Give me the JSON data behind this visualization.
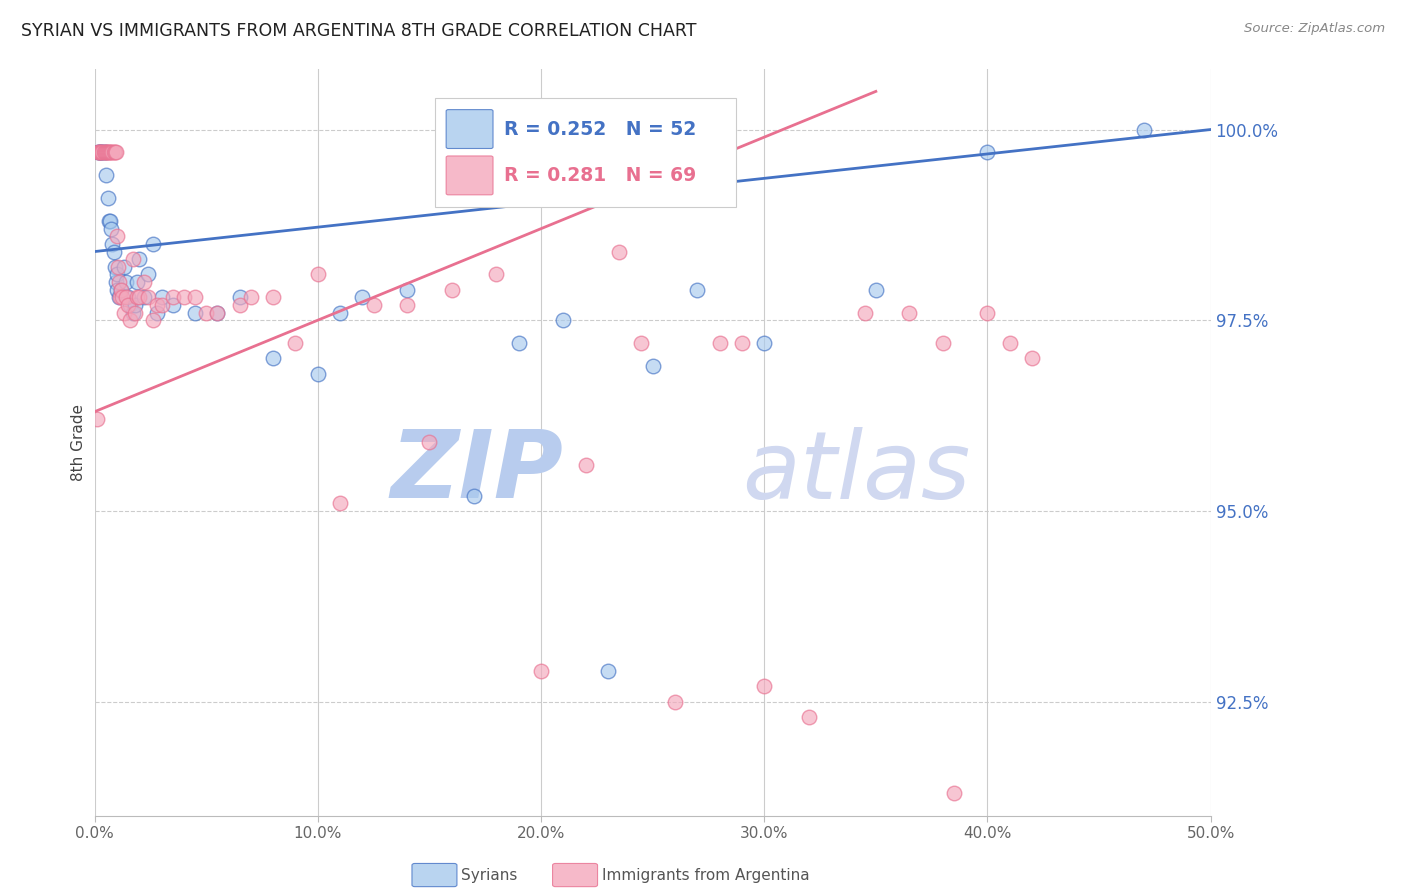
{
  "title": "SYRIAN VS IMMIGRANTS FROM ARGENTINA 8TH GRADE CORRELATION CHART",
  "source": "Source: ZipAtlas.com",
  "ylabel": "8th Grade",
  "y_ticks_right": [
    100.0,
    97.5,
    95.0,
    92.5
  ],
  "y_ticks_right_labels": [
    "100.0%",
    "97.5%",
    "95.0%",
    "92.5%"
  ],
  "y_min": 91.0,
  "y_max": 100.8,
  "x_min": 0.0,
  "x_max": 50.0,
  "legend_R_blue": "R = 0.252",
  "legend_N_blue": "N = 52",
  "legend_R_pink": "R = 0.281",
  "legend_N_pink": "N = 69",
  "legend_label_blue": "Syrians",
  "legend_label_pink": "Immigrants from Argentina",
  "color_blue": "#A8CAED",
  "color_pink": "#F4A8BC",
  "trendline_blue": "#4472C4",
  "trendline_pink": "#E87090",
  "background_color": "#FFFFFF",
  "title_color": "#222222",
  "axis_label_color": "#444444",
  "right_tick_color": "#4472C4",
  "grid_color": "#CCCCCC",
  "watermark_zip": "ZIP",
  "watermark_atlas": "atlas",
  "watermark_color_zip": "#B8CCEE",
  "watermark_color_atlas": "#D0D8F0",
  "blue_points_x": [
    0.15,
    0.2,
    0.25,
    0.3,
    0.35,
    0.4,
    0.5,
    0.5,
    0.6,
    0.65,
    0.7,
    0.75,
    0.8,
    0.85,
    0.9,
    0.95,
    1.0,
    1.0,
    1.1,
    1.2,
    1.3,
    1.4,
    1.5,
    1.6,
    1.7,
    1.8,
    1.9,
    2.0,
    2.2,
    2.4,
    2.6,
    2.8,
    3.0,
    3.5,
    4.5,
    5.5,
    6.5,
    8.0,
    10.0,
    11.0,
    12.0,
    14.0,
    17.0,
    19.0,
    21.0,
    23.0,
    25.0,
    27.0,
    30.0,
    35.0,
    40.0,
    47.0
  ],
  "blue_points_y": [
    99.7,
    99.7,
    99.7,
    99.7,
    99.7,
    99.7,
    99.7,
    99.4,
    99.1,
    98.8,
    98.8,
    98.7,
    98.5,
    98.4,
    98.2,
    98.0,
    98.1,
    97.9,
    97.8,
    97.9,
    98.2,
    98.0,
    97.8,
    97.7,
    97.6,
    97.7,
    98.0,
    98.3,
    97.8,
    98.1,
    98.5,
    97.6,
    97.8,
    97.7,
    97.6,
    97.6,
    97.8,
    97.0,
    96.8,
    97.6,
    97.8,
    97.9,
    95.2,
    97.2,
    97.5,
    92.9,
    96.9,
    97.9,
    97.2,
    97.9,
    99.7,
    100.0
  ],
  "pink_points_x": [
    0.1,
    0.15,
    0.2,
    0.25,
    0.3,
    0.35,
    0.4,
    0.45,
    0.5,
    0.55,
    0.6,
    0.65,
    0.7,
    0.75,
    0.8,
    0.85,
    0.9,
    0.95,
    1.0,
    1.05,
    1.1,
    1.15,
    1.2,
    1.25,
    1.3,
    1.4,
    1.5,
    1.6,
    1.7,
    1.8,
    1.9,
    2.0,
    2.2,
    2.4,
    2.6,
    2.8,
    3.0,
    3.5,
    4.0,
    4.5,
    5.0,
    5.5,
    6.5,
    7.0,
    8.0,
    9.0,
    10.0,
    11.0,
    12.5,
    14.0,
    15.0,
    16.0,
    18.0,
    20.0,
    22.0,
    23.5,
    24.5,
    26.0,
    28.0,
    29.0,
    30.0,
    32.0,
    34.5,
    36.5,
    38.0,
    38.5,
    40.0,
    41.0,
    42.0
  ],
  "pink_points_y": [
    96.2,
    99.7,
    99.7,
    99.7,
    99.7,
    99.7,
    99.7,
    99.7,
    99.7,
    99.7,
    99.7,
    99.7,
    99.7,
    99.7,
    99.7,
    99.7,
    99.7,
    99.7,
    98.6,
    98.2,
    98.0,
    97.8,
    97.9,
    97.8,
    97.6,
    97.8,
    97.7,
    97.5,
    98.3,
    97.6,
    97.8,
    97.8,
    98.0,
    97.8,
    97.5,
    97.7,
    97.7,
    97.8,
    97.8,
    97.8,
    97.6,
    97.6,
    97.7,
    97.8,
    97.8,
    97.2,
    98.1,
    95.1,
    97.7,
    97.7,
    95.9,
    97.9,
    98.1,
    92.9,
    95.6,
    98.4,
    97.2,
    92.5,
    97.2,
    97.2,
    92.7,
    92.3,
    97.6,
    97.6,
    97.2,
    91.3,
    97.6,
    97.2,
    97.0
  ]
}
